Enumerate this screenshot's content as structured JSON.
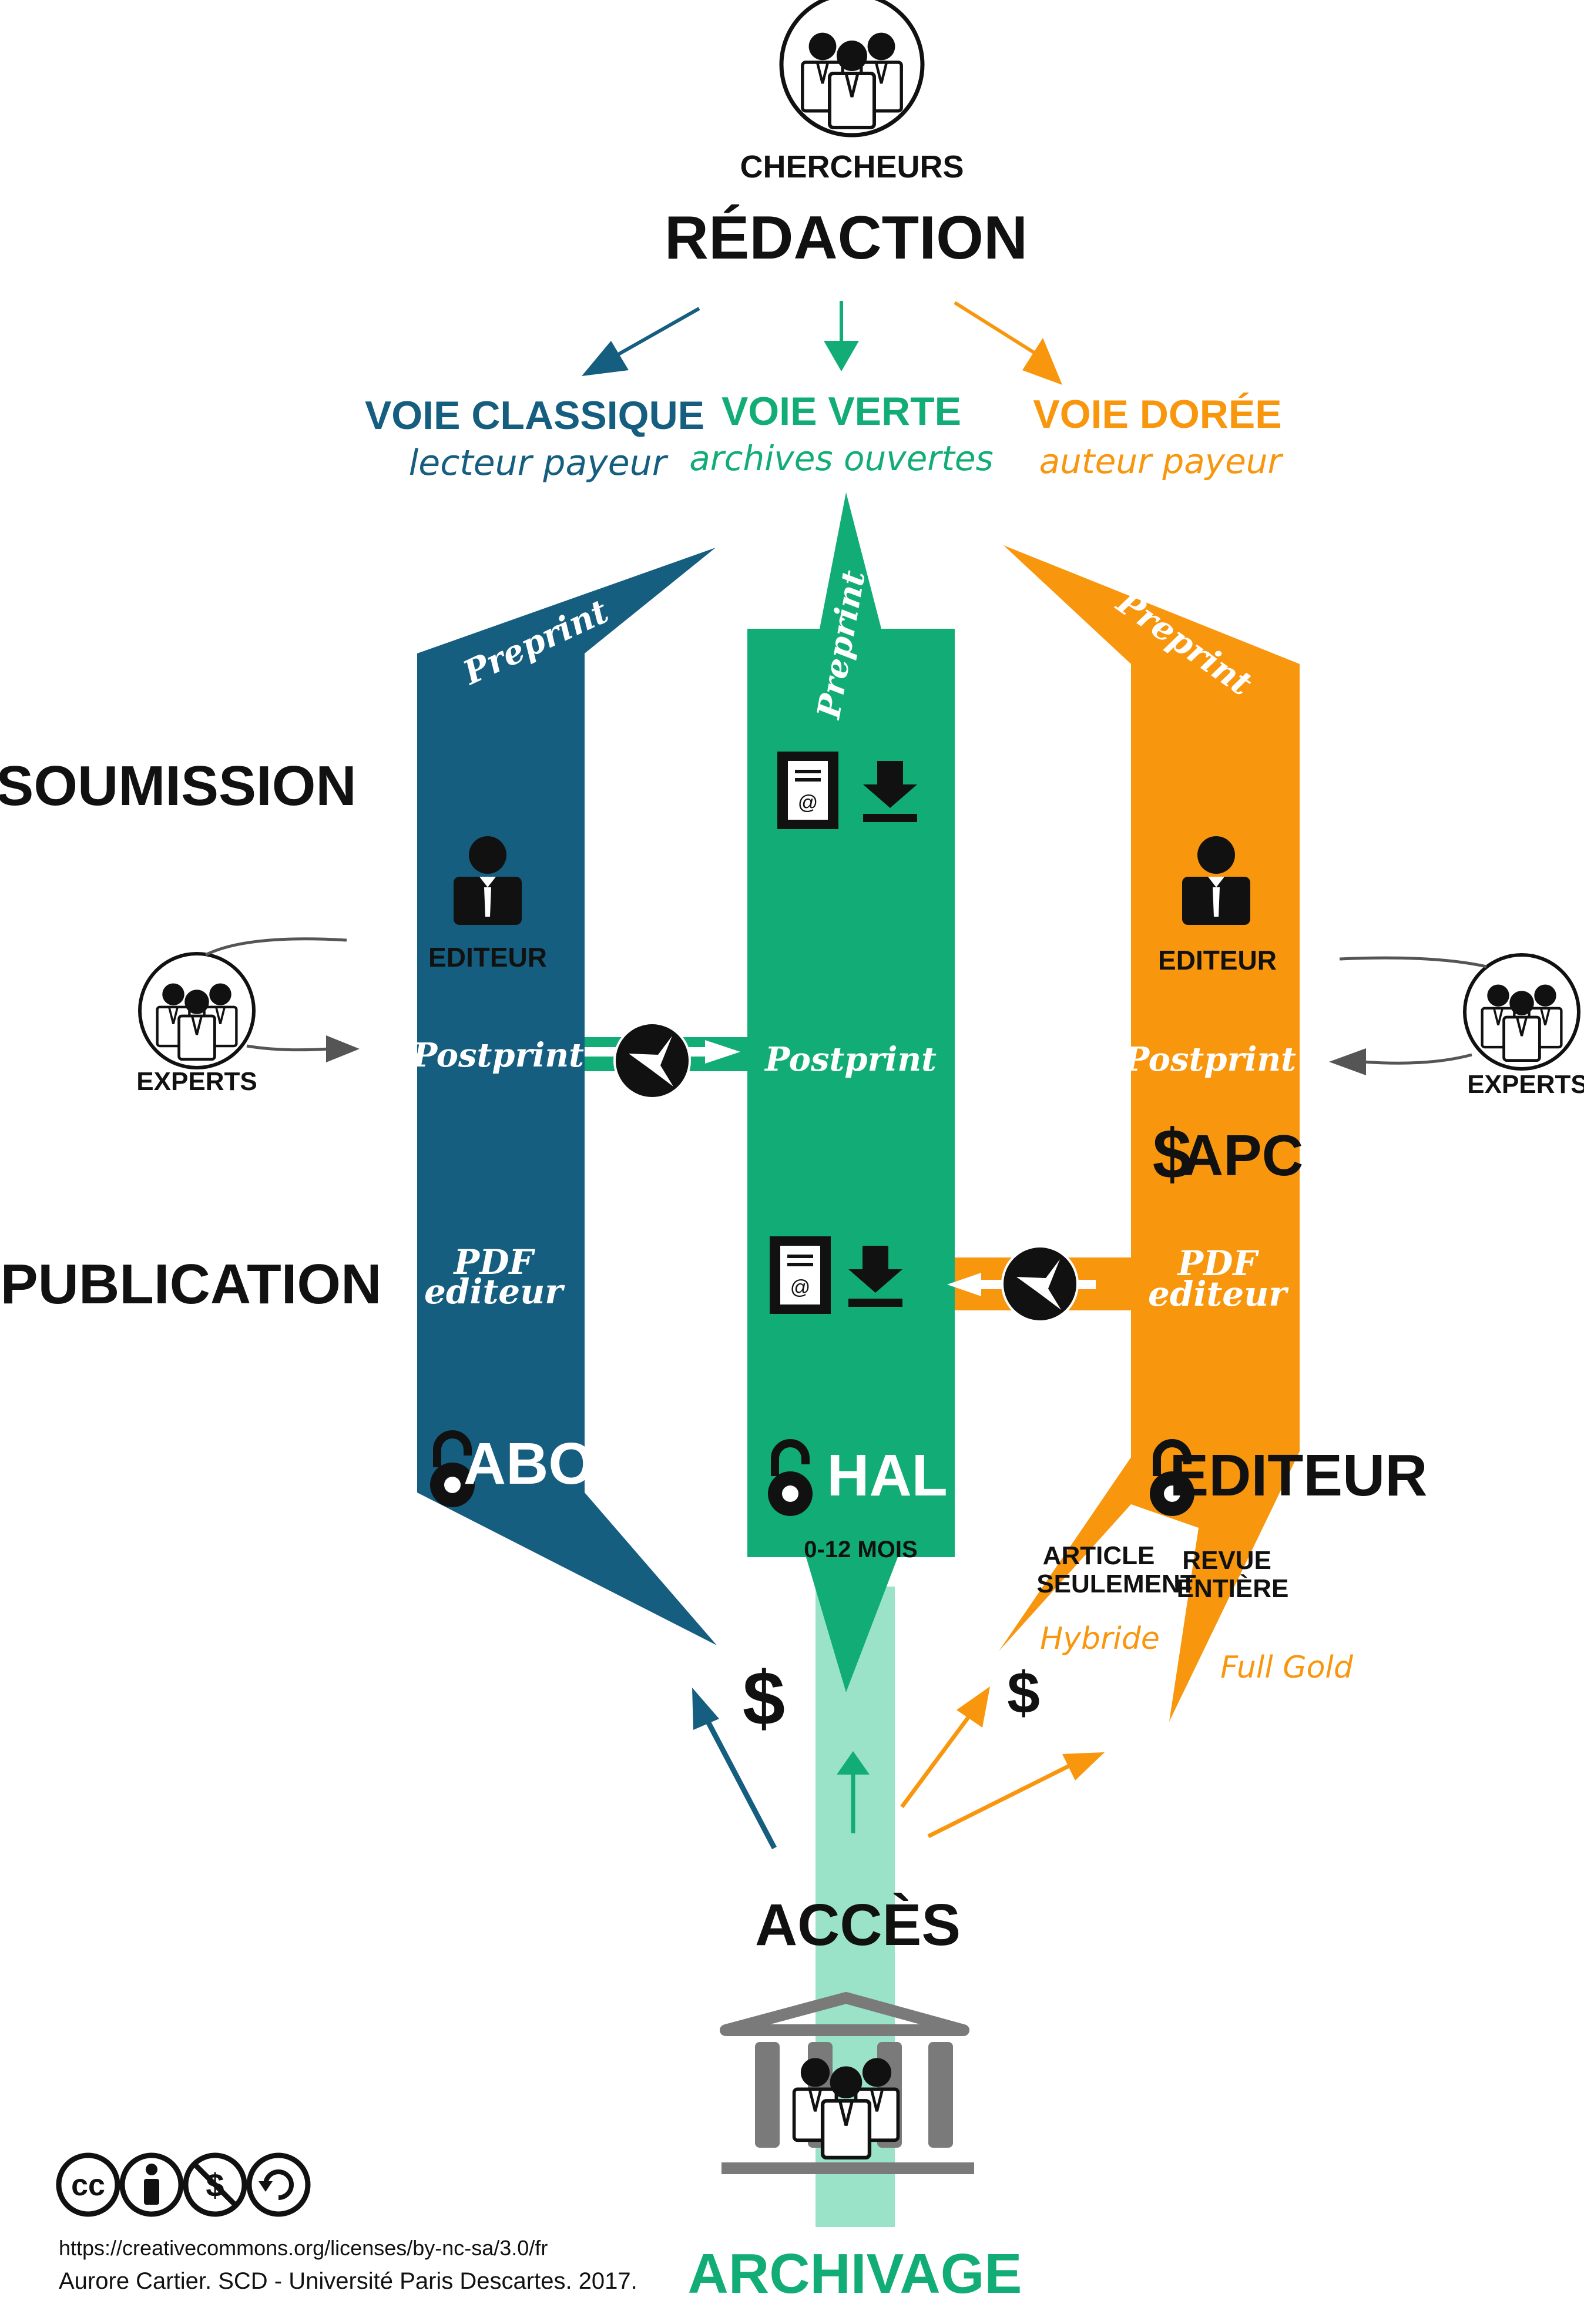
{
  "colors": {
    "classique": "#155e7f",
    "verte": "#12ad76",
    "doree": "#f8960d",
    "access_band": "#9be3c8",
    "ink": "#111111",
    "grey": "#555555",
    "building": "#7a7a7a"
  },
  "top": {
    "chercheurs": "CHERCHEURS",
    "redaction": "RÉDACTION"
  },
  "voies": {
    "classique_title": "VOIE CLASSIQUE",
    "classique_sub": "lecteur payeur",
    "verte_title": "VOIE VERTE",
    "verte_sub": "archives ouvertes",
    "doree_title": "VOIE DORÉE",
    "doree_sub": "auteur payeur"
  },
  "stages": {
    "soumission": "SOUMISSION",
    "publication": "PUBLICATION",
    "acces": "ACCÈS",
    "archivage": "ARCHIVAGE"
  },
  "labels": {
    "preprint": "Preprint",
    "postprint": "Postprint",
    "pdf_line1": "PDF",
    "pdf_line2": "editeur",
    "editeur": "EDITEUR",
    "experts": "EXPERTS",
    "apc": "APC",
    "abo": "ABO",
    "hal": "HAL",
    "editeur_access": "EDITEUR",
    "mois": "0-12 MOIS",
    "article_line1": "ARTICLE",
    "article_line2": "SEULEMENT",
    "revue_line1": "REVUE",
    "revue_line2": "ENTIÈRE",
    "hybride": "Hybride",
    "full_gold": "Full Gold",
    "dollar": "$"
  },
  "icons": {
    "researchers": "researchers-group-icon",
    "editor": "editor-person-icon",
    "server": "archive-server-icon",
    "download": "download-icon",
    "compass": "compass-icon",
    "open_lock": "open-access-lock-icon",
    "library": "library-building-icon"
  },
  "credits": {
    "license_url": "https://creativecommons.org/licenses/by-nc-sa/3.0/fr",
    "author": "Aurore Cartier. SCD - Université Paris Descartes. 2017."
  }
}
